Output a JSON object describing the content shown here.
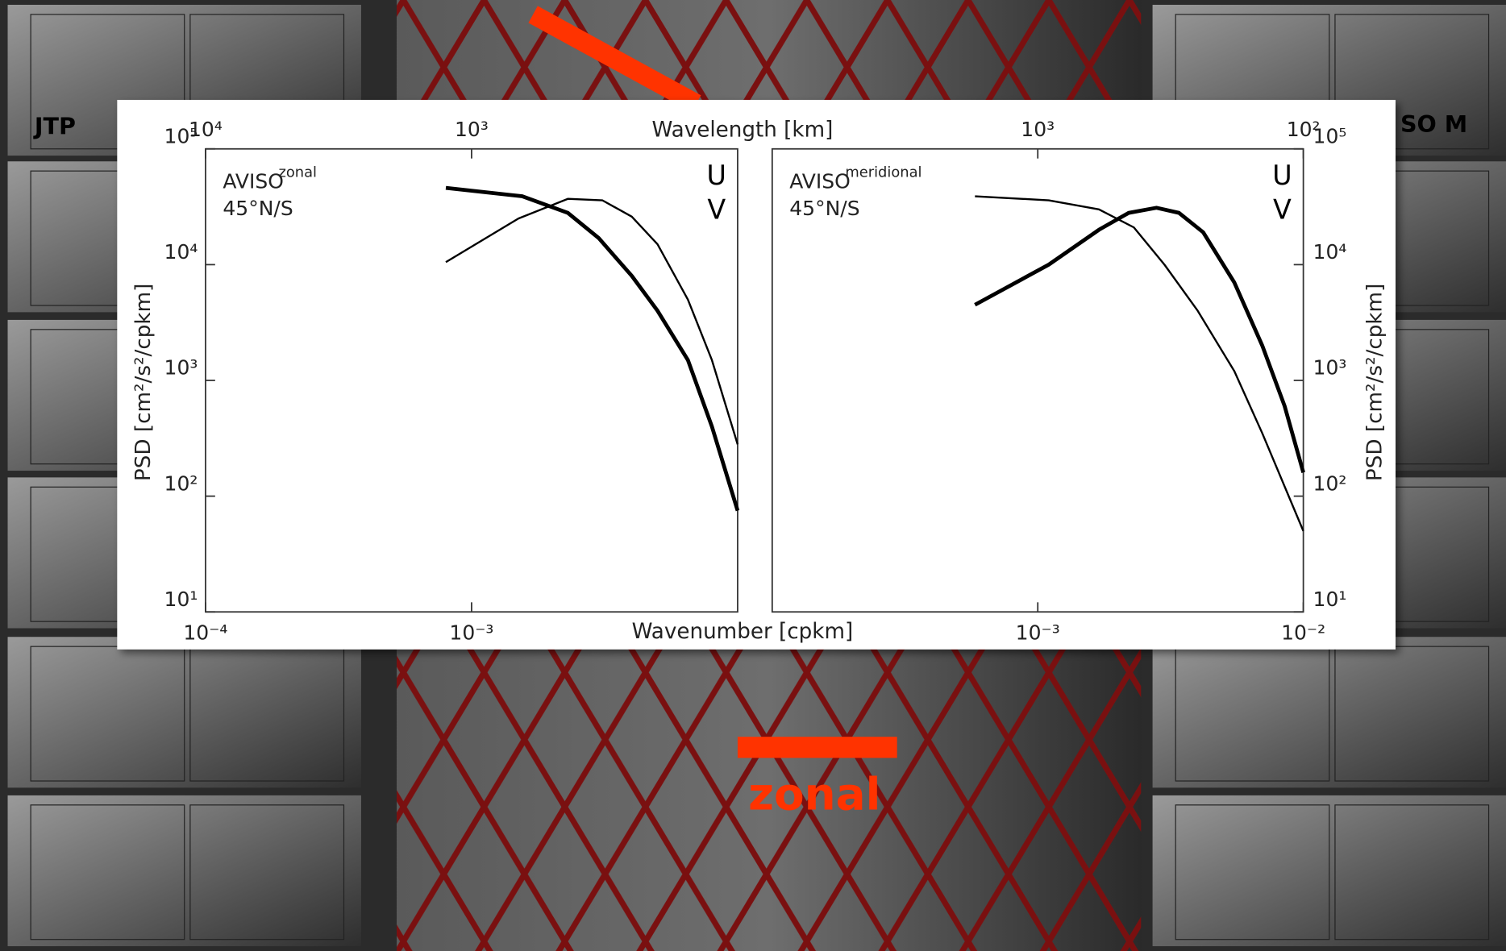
{
  "slide": {
    "left_label": "JTP",
    "right_label": "SO M",
    "highlight_label": "zonal"
  },
  "chart_data": [
    {
      "type": "line",
      "xlabel": "Wavenumber [cpkm]",
      "x2label": "Wavelength [km]",
      "ylabel": "PSD [cm²/s²/cpkm]",
      "dataset": "AVISO",
      "component": "zonal",
      "region": "45°N/S",
      "xscale": "log",
      "yscale": "log",
      "xlim": [
        0.0001,
        0.01
      ],
      "ylim": [
        10,
        100000
      ],
      "x2lim": [
        10000,
        100
      ],
      "xticks": [
        {
          "value": 0.0001,
          "label": "10⁻⁴"
        },
        {
          "value": 0.001,
          "label": "10⁻³"
        }
      ],
      "x2ticks": [
        {
          "value": 10000,
          "label": "10⁴"
        },
        {
          "value": 1000,
          "label": "10³"
        }
      ],
      "yticks": [
        {
          "value": 10,
          "label": "10¹"
        },
        {
          "value": 100,
          "label": "10²"
        },
        {
          "value": 1000,
          "label": "10³"
        },
        {
          "value": 10000,
          "label": "10⁴"
        },
        {
          "value": 100000,
          "label": "10⁵"
        }
      ],
      "ytick_side": "left",
      "legend": "upper right",
      "series": [
        {
          "name": "U",
          "color": "#000000",
          "line_width": 4,
          "x": [
            0.0008,
            0.00155,
            0.0023,
            0.003,
            0.004,
            0.005,
            0.0065,
            0.008,
            0.01
          ],
          "values": [
            46000,
            39000,
            28000,
            17000,
            8000,
            4000,
            1500,
            400,
            75
          ]
        },
        {
          "name": "V",
          "color": "#000000",
          "line_width": 2,
          "x": [
            0.0008,
            0.0015,
            0.0023,
            0.0031,
            0.004,
            0.005,
            0.0065,
            0.008,
            0.01
          ],
          "values": [
            10500,
            25000,
            37000,
            36000,
            26000,
            15000,
            5000,
            1500,
            280
          ]
        }
      ]
    },
    {
      "type": "line",
      "ylabel": "PSD [cm²/s²/cpkm]",
      "dataset": "AVISO",
      "component": "meridional",
      "region": "45°N/S",
      "xscale": "log",
      "yscale": "log",
      "xlim": [
        0.0001,
        0.01
      ],
      "ylim": [
        10,
        100000
      ],
      "x2lim": [
        10000,
        100
      ],
      "xticks": [
        {
          "value": 0.001,
          "label": "10⁻³"
        },
        {
          "value": 0.01,
          "label": "10⁻²"
        }
      ],
      "x2ticks": [
        {
          "value": 1000,
          "label": "10³"
        },
        {
          "value": 100,
          "label": "10²"
        }
      ],
      "yticks": [
        {
          "value": 10,
          "label": "10¹"
        },
        {
          "value": 100,
          "label": "10²"
        },
        {
          "value": 1000,
          "label": "10³"
        },
        {
          "value": 10000,
          "label": "10⁴"
        },
        {
          "value": 100000,
          "label": "10⁵"
        }
      ],
      "ytick_side": "right",
      "legend": "upper right",
      "series": [
        {
          "name": "U",
          "color": "#000000",
          "line_width": 4,
          "x": [
            0.00058,
            0.0011,
            0.0017,
            0.0022,
            0.0028,
            0.0034,
            0.0042,
            0.0055,
            0.007,
            0.0085,
            0.01
          ],
          "values": [
            4500,
            10000,
            20000,
            28000,
            31000,
            28000,
            19000,
            7000,
            2000,
            600,
            160
          ]
        },
        {
          "name": "V",
          "color": "#000000",
          "line_width": 2,
          "x": [
            0.00058,
            0.0011,
            0.0017,
            0.0023,
            0.003,
            0.004,
            0.0055,
            0.007,
            0.01
          ],
          "values": [
            39000,
            36000,
            30000,
            21000,
            10000,
            4000,
            1200,
            350,
            50
          ]
        }
      ]
    }
  ]
}
